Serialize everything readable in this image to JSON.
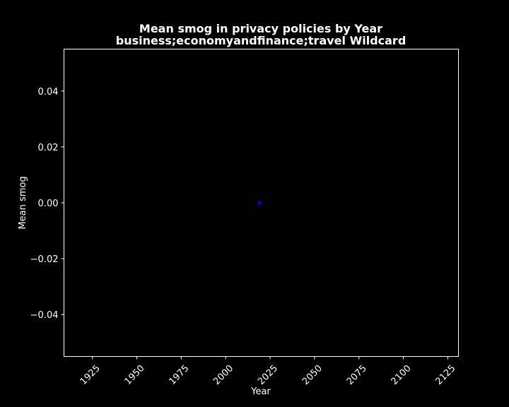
{
  "chart_data": {
    "type": "scatter",
    "title_line1": "Mean smog in privacy policies by Year",
    "title_line2": "business;economyandfinance;travel Wildcard",
    "xlabel": "Year",
    "ylabel": "Mean smog",
    "xlim": [
      1909,
      2131
    ],
    "ylim": [
      -0.055,
      0.055
    ],
    "xticks": [
      1925,
      1950,
      1975,
      2000,
      2025,
      2050,
      2075,
      2100,
      2125
    ],
    "xtick_labels": [
      "1925",
      "1950",
      "1975",
      "2000",
      "2025",
      "2050",
      "2075",
      "2100",
      "2125"
    ],
    "yticks": [
      0.04,
      0.02,
      0.0,
      -0.02,
      -0.04
    ],
    "ytick_labels": [
      "0.04",
      "0.02",
      "0.00",
      "−0.02",
      "−0.04"
    ],
    "points": [
      {
        "x": 2019,
        "y": 0.0
      }
    ],
    "grid": false,
    "colors": {
      "background": "#000000",
      "foreground": "#ffffff",
      "point": "#0000ff"
    }
  }
}
